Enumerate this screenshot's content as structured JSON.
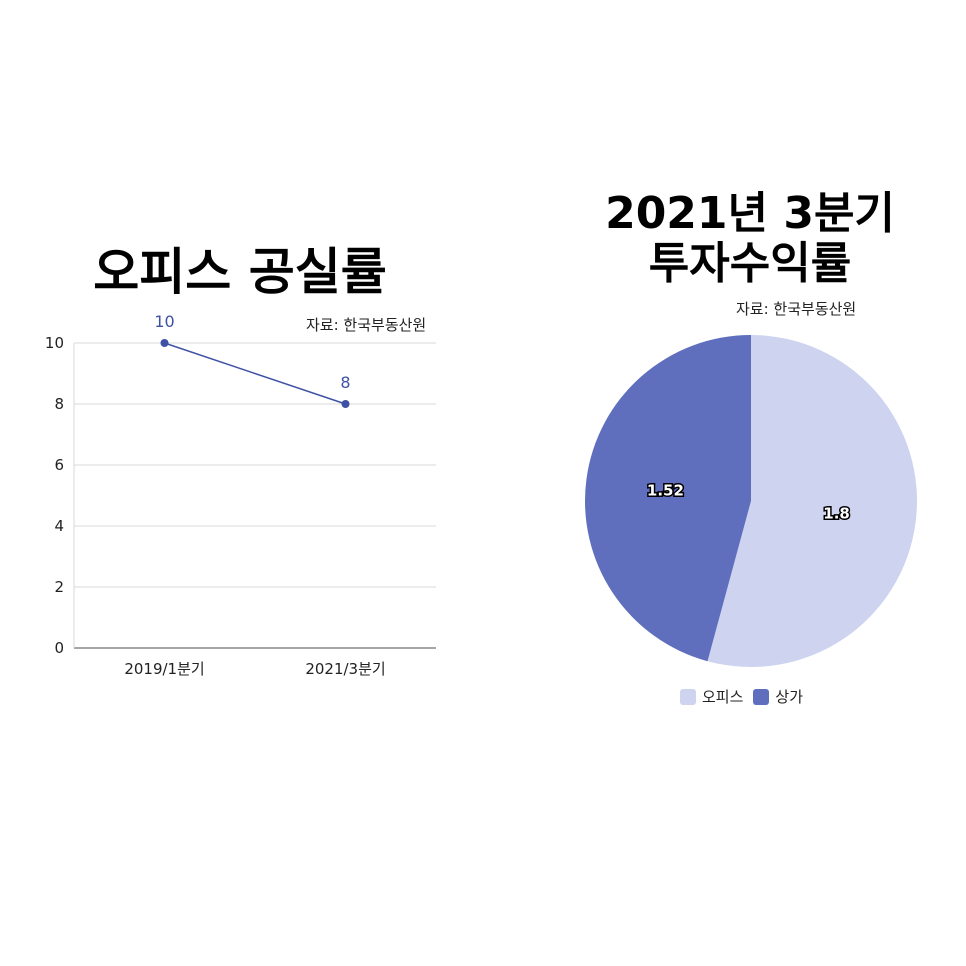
{
  "colors": {
    "line": "#3f51a5",
    "office": "#ced3f0",
    "retail": "#5f6fbe",
    "grid": "#d8d8d8",
    "axis": "#888888"
  },
  "line_chart": {
    "title": "오피스 공실률",
    "source": "자료: 한국부동산원"
  },
  "pie_chart": {
    "title_line1": "2021년 3분기",
    "title_line2": "투자수익률",
    "source": "자료: 한국부동산원"
  },
  "chart_data": [
    {
      "type": "line",
      "title": "오피스 공실률",
      "categories": [
        "2019/1분기",
        "2021/3분기"
      ],
      "series": [
        {
          "values": [
            10,
            8
          ]
        }
      ],
      "ylim": [
        0,
        10
      ],
      "yticks": [
        "0",
        "2",
        "4",
        "6",
        "8",
        "10"
      ],
      "grid": true,
      "data_labels": [
        "10",
        "8"
      ]
    },
    {
      "type": "pie",
      "title": "2021년 3분기 투자수익률",
      "labels": [
        "오피스",
        "상가"
      ],
      "values": [
        1.8,
        1.52
      ],
      "data_labels": [
        "1.8",
        "1.52"
      ],
      "legend_position": "bottom"
    }
  ]
}
